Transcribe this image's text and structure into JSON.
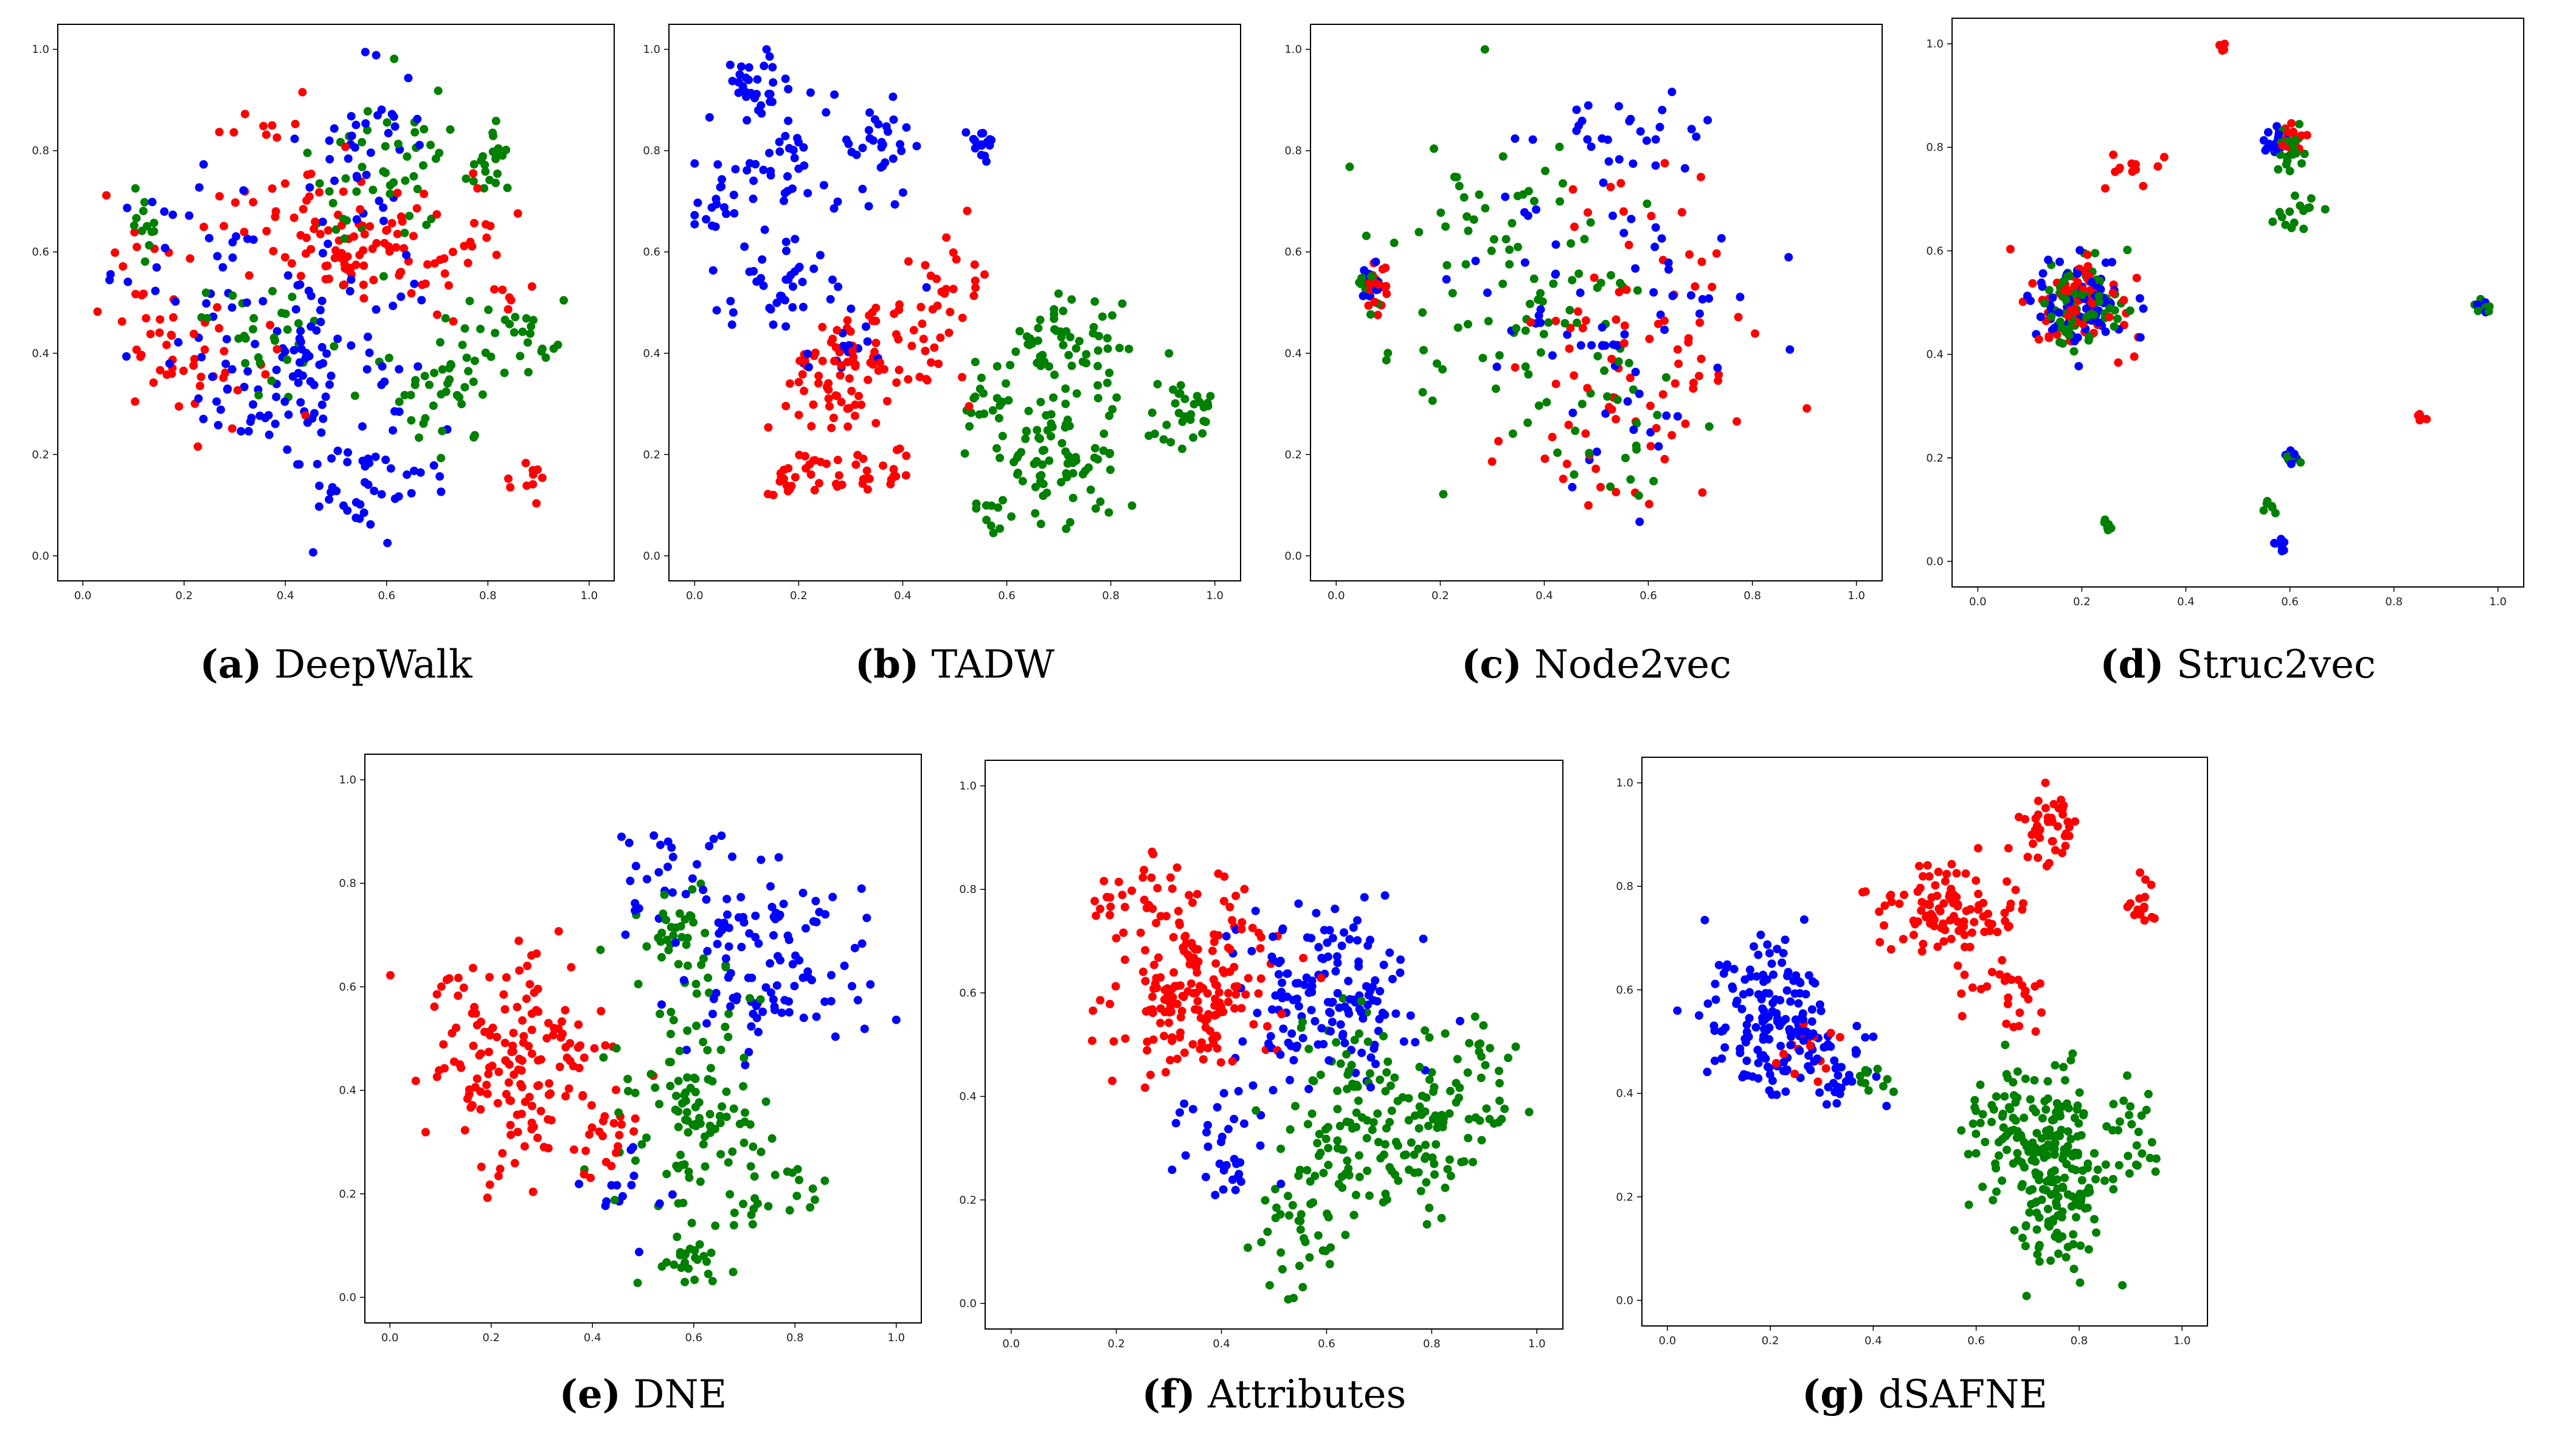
{
  "figure": {
    "colors": {
      "class_a": "#0000ff",
      "class_b": "#ff0000",
      "class_c": "#008000"
    }
  },
  "chart_data": [
    {
      "id": "a",
      "type": "scatter",
      "letter": "(a)",
      "title": "DeepWalk",
      "xlim": [
        0,
        1
      ],
      "ylim": [
        0,
        1
      ],
      "xticks": [
        "0.0",
        "0.2",
        "0.4",
        "0.6",
        "0.8",
        "1.0"
      ],
      "yticks": [
        "0.0",
        "0.2",
        "0.4",
        "0.6",
        "0.8",
        "1.0"
      ],
      "series": [
        {
          "name": "blue",
          "color": "#0000ff",
          "clusters": [
            [
              0.45,
              0.35,
              0.13,
              0.15,
              110
            ],
            [
              0.55,
              0.78,
              0.08,
              0.12,
              40
            ],
            [
              0.25,
              0.55,
              0.12,
              0.12,
              40
            ],
            [
              0.6,
              0.12,
              0.12,
              0.05,
              25
            ]
          ]
        },
        {
          "name": "red",
          "color": "#ff0000",
          "clusters": [
            [
              0.55,
              0.6,
              0.08,
              0.05,
              60
            ],
            [
              0.2,
              0.45,
              0.1,
              0.12,
              55
            ],
            [
              0.4,
              0.72,
              0.1,
              0.12,
              40
            ],
            [
              0.75,
              0.55,
              0.08,
              0.1,
              30
            ],
            [
              0.88,
              0.15,
              0.03,
              0.03,
              10
            ]
          ]
        },
        {
          "name": "green",
          "color": "#008000",
          "clusters": [
            [
              0.6,
              0.75,
              0.1,
              0.12,
              50
            ],
            [
              0.72,
              0.35,
              0.08,
              0.1,
              45
            ],
            [
              0.88,
              0.45,
              0.05,
              0.05,
              20
            ],
            [
              0.8,
              0.78,
              0.04,
              0.04,
              20
            ],
            [
              0.12,
              0.66,
              0.03,
              0.04,
              12
            ],
            [
              0.35,
              0.45,
              0.08,
              0.08,
              30
            ]
          ]
        }
      ]
    },
    {
      "id": "b",
      "type": "scatter",
      "letter": "(b)",
      "title": "TADW",
      "xlim": [
        0,
        1
      ],
      "ylim": [
        0,
        1
      ],
      "xticks": [
        "0.0",
        "0.2",
        "0.4",
        "0.6",
        "0.8",
        "1.0"
      ],
      "yticks": [
        "0.0",
        "0.2",
        "0.4",
        "0.6",
        "0.8",
        "1.0"
      ],
      "series": [
        {
          "name": "blue",
          "color": "#0000ff",
          "clusters": [
            [
              0.12,
              0.93,
              0.04,
              0.04,
              30
            ],
            [
              0.05,
              0.7,
              0.03,
              0.03,
              15
            ],
            [
              0.15,
              0.76,
              0.08,
              0.06,
              35
            ],
            [
              0.15,
              0.55,
              0.06,
              0.06,
              35
            ],
            [
              0.35,
              0.8,
              0.06,
              0.08,
              35
            ],
            [
              0.55,
              0.82,
              0.02,
              0.02,
              15
            ],
            [
              0.3,
              0.45,
              0.06,
              0.06,
              20
            ]
          ]
        },
        {
          "name": "red",
          "color": "#ff0000",
          "clusters": [
            [
              0.25,
              0.35,
              0.07,
              0.08,
              60
            ],
            [
              0.2,
              0.15,
              0.05,
              0.03,
              30
            ],
            [
              0.4,
              0.43,
              0.08,
              0.08,
              45
            ],
            [
              0.5,
              0.55,
              0.05,
              0.05,
              15
            ],
            [
              0.35,
              0.17,
              0.05,
              0.03,
              20
            ]
          ]
        },
        {
          "name": "green",
          "color": "#008000",
          "clusters": [
            [
              0.7,
              0.2,
              0.09,
              0.08,
              90
            ],
            [
              0.72,
              0.42,
              0.08,
              0.07,
              55
            ],
            [
              0.93,
              0.28,
              0.04,
              0.05,
              30
            ],
            [
              0.58,
              0.08,
              0.03,
              0.02,
              10
            ],
            [
              0.55,
              0.3,
              0.04,
              0.05,
              15
            ]
          ]
        }
      ]
    },
    {
      "id": "c",
      "type": "scatter",
      "letter": "(c)",
      "title": "Node2vec",
      "xlim": [
        0,
        1
      ],
      "ylim": [
        0,
        1
      ],
      "xticks": [
        "0.0",
        "0.2",
        "0.4",
        "0.6",
        "0.8",
        "1.0"
      ],
      "yticks": [
        "0.0",
        "0.2",
        "0.4",
        "0.6",
        "0.8",
        "1.0"
      ],
      "series": [
        {
          "name": "blue",
          "color": "#0000ff",
          "clusters": [
            [
              0.55,
              0.5,
              0.18,
              0.22,
              70
            ],
            [
              0.55,
              0.82,
              0.08,
              0.06,
              25
            ],
            [
              0.07,
              0.53,
              0.015,
              0.03,
              10
            ]
          ]
        },
        {
          "name": "red",
          "color": "#ff0000",
          "clusters": [
            [
              0.6,
              0.45,
              0.15,
              0.2,
              70
            ],
            [
              0.08,
              0.53,
              0.015,
              0.04,
              20
            ],
            [
              0.45,
              0.2,
              0.1,
              0.1,
              15
            ]
          ]
        },
        {
          "name": "green",
          "color": "#008000",
          "clusters": [
            [
              0.35,
              0.55,
              0.15,
              0.2,
              90
            ],
            [
              0.55,
              0.25,
              0.12,
              0.1,
              25
            ],
            [
              0.06,
              0.53,
              0.015,
              0.03,
              8
            ]
          ]
        }
      ]
    },
    {
      "id": "d",
      "type": "scatter",
      "letter": "(d)",
      "title": "Struc2vec",
      "xlim": [
        0,
        1
      ],
      "ylim": [
        0,
        1
      ],
      "xticks": [
        "0.0",
        "0.2",
        "0.4",
        "0.6",
        "0.8",
        "1.0"
      ],
      "yticks": [
        "0.0",
        "0.2",
        "0.4",
        "0.6",
        "0.8",
        "1.0"
      ],
      "series": [
        {
          "name": "blue",
          "color": "#0000ff",
          "clusters": [
            [
              0.2,
              0.5,
              0.06,
              0.06,
              70
            ],
            [
              0.58,
              0.8,
              0.02,
              0.03,
              20
            ],
            [
              0.6,
              0.2,
              0.01,
              0.01,
              10
            ],
            [
              0.97,
              0.49,
              0.01,
              0.01,
              6
            ],
            [
              0.58,
              0.03,
              0.01,
              0.01,
              8
            ]
          ]
        },
        {
          "name": "red",
          "color": "#ff0000",
          "clusters": [
            [
              0.2,
              0.5,
              0.06,
              0.06,
              70
            ],
            [
              0.3,
              0.77,
              0.04,
              0.03,
              12
            ],
            [
              0.6,
              0.82,
              0.02,
              0.02,
              15
            ],
            [
              0.85,
              0.28,
              0.01,
              0.005,
              5
            ],
            [
              0.47,
              0.99,
              0.01,
              0.005,
              4
            ]
          ]
        },
        {
          "name": "green",
          "color": "#008000",
          "clusters": [
            [
              0.2,
              0.5,
              0.06,
              0.06,
              70
            ],
            [
              0.6,
              0.8,
              0.02,
              0.03,
              20
            ],
            [
              0.62,
              0.68,
              0.03,
              0.03,
              15
            ],
            [
              0.25,
              0.07,
              0.01,
              0.01,
              6
            ],
            [
              0.6,
              0.2,
              0.01,
              0.01,
              10
            ],
            [
              0.97,
              0.49,
              0.01,
              0.01,
              6
            ],
            [
              0.56,
              0.1,
              0.01,
              0.01,
              6
            ]
          ]
        }
      ]
    },
    {
      "id": "e",
      "type": "scatter",
      "letter": "(e)",
      "title": "DNE",
      "xlim": [
        0,
        1
      ],
      "ylim": [
        0,
        1
      ],
      "xticks": [
        "0.0",
        "0.2",
        "0.4",
        "0.6",
        "0.8",
        "1.0"
      ],
      "yticks": [
        "0.0",
        "0.2",
        "0.4",
        "0.6",
        "0.8",
        "1.0"
      ],
      "series": [
        {
          "name": "blue",
          "color": "#0000ff",
          "clusters": [
            [
              0.75,
              0.65,
              0.12,
              0.12,
              110
            ],
            [
              0.55,
              0.82,
              0.08,
              0.06,
              25
            ],
            [
              0.45,
              0.2,
              0.05,
              0.08,
              15
            ]
          ]
        },
        {
          "name": "red",
          "color": "#ff0000",
          "clusters": [
            [
              0.25,
              0.47,
              0.1,
              0.13,
              160
            ],
            [
              0.42,
              0.32,
              0.04,
              0.06,
              20
            ]
          ]
        },
        {
          "name": "green",
          "color": "#008000",
          "clusters": [
            [
              0.6,
              0.4,
              0.1,
              0.15,
              110
            ],
            [
              0.58,
              0.07,
              0.04,
              0.03,
              25
            ],
            [
              0.75,
              0.2,
              0.06,
              0.05,
              25
            ],
            [
              0.55,
              0.7,
              0.06,
              0.06,
              30
            ]
          ]
        }
      ]
    },
    {
      "id": "f",
      "type": "scatter",
      "letter": "(f)",
      "title": "Attributes",
      "xlim": [
        0,
        1
      ],
      "ylim": [
        0,
        1
      ],
      "xticks": [
        "0.0",
        "0.2",
        "0.4",
        "0.6",
        "0.8",
        "1.0"
      ],
      "yticks": [
        "0.0",
        "0.2",
        "0.4",
        "0.6",
        "0.8",
        "1.0"
      ],
      "series": [
        {
          "name": "blue",
          "color": "#0000ff",
          "clusters": [
            [
              0.6,
              0.6,
              0.1,
              0.12,
              150
            ],
            [
              0.4,
              0.3,
              0.06,
              0.08,
              35
            ]
          ]
        },
        {
          "name": "red",
          "color": "#ff0000",
          "clusters": [
            [
              0.35,
              0.6,
              0.1,
              0.1,
              180
            ],
            [
              0.25,
              0.78,
              0.08,
              0.06,
              30
            ]
          ]
        },
        {
          "name": "green",
          "color": "#008000",
          "clusters": [
            [
              0.7,
              0.35,
              0.12,
              0.12,
              170
            ],
            [
              0.55,
              0.15,
              0.08,
              0.06,
              35
            ],
            [
              0.9,
              0.4,
              0.04,
              0.08,
              25
            ]
          ]
        }
      ]
    },
    {
      "id": "g",
      "type": "scatter",
      "letter": "(g)",
      "title": "dSAFNE",
      "xlim": [
        0,
        1
      ],
      "ylim": [
        0,
        1
      ],
      "xticks": [
        "0.0",
        "0.2",
        "0.4",
        "0.6",
        "0.8",
        "1.0"
      ],
      "yticks": [
        "0.0",
        "0.2",
        "0.4",
        "0.6",
        "0.8",
        "1.0"
      ],
      "series": [
        {
          "name": "blue",
          "color": "#0000ff",
          "clusters": [
            [
              0.2,
              0.55,
              0.08,
              0.1,
              150
            ],
            [
              0.33,
              0.45,
              0.06,
              0.05,
              40
            ]
          ]
        },
        {
          "name": "red",
          "color": "#ff0000",
          "clusters": [
            [
              0.55,
              0.75,
              0.09,
              0.06,
              110
            ],
            [
              0.74,
              0.93,
              0.03,
              0.04,
              40
            ],
            [
              0.92,
              0.76,
              0.02,
              0.03,
              15
            ],
            [
              0.68,
              0.6,
              0.05,
              0.05,
              25
            ],
            [
              0.25,
              0.5,
              0.05,
              0.05,
              15
            ]
          ]
        },
        {
          "name": "green",
          "color": "#008000",
          "clusters": [
            [
              0.75,
              0.25,
              0.07,
              0.12,
              200
            ],
            [
              0.65,
              0.35,
              0.06,
              0.06,
              40
            ],
            [
              0.9,
              0.3,
              0.04,
              0.06,
              25
            ],
            [
              0.4,
              0.42,
              0.03,
              0.03,
              10
            ]
          ]
        }
      ]
    }
  ]
}
